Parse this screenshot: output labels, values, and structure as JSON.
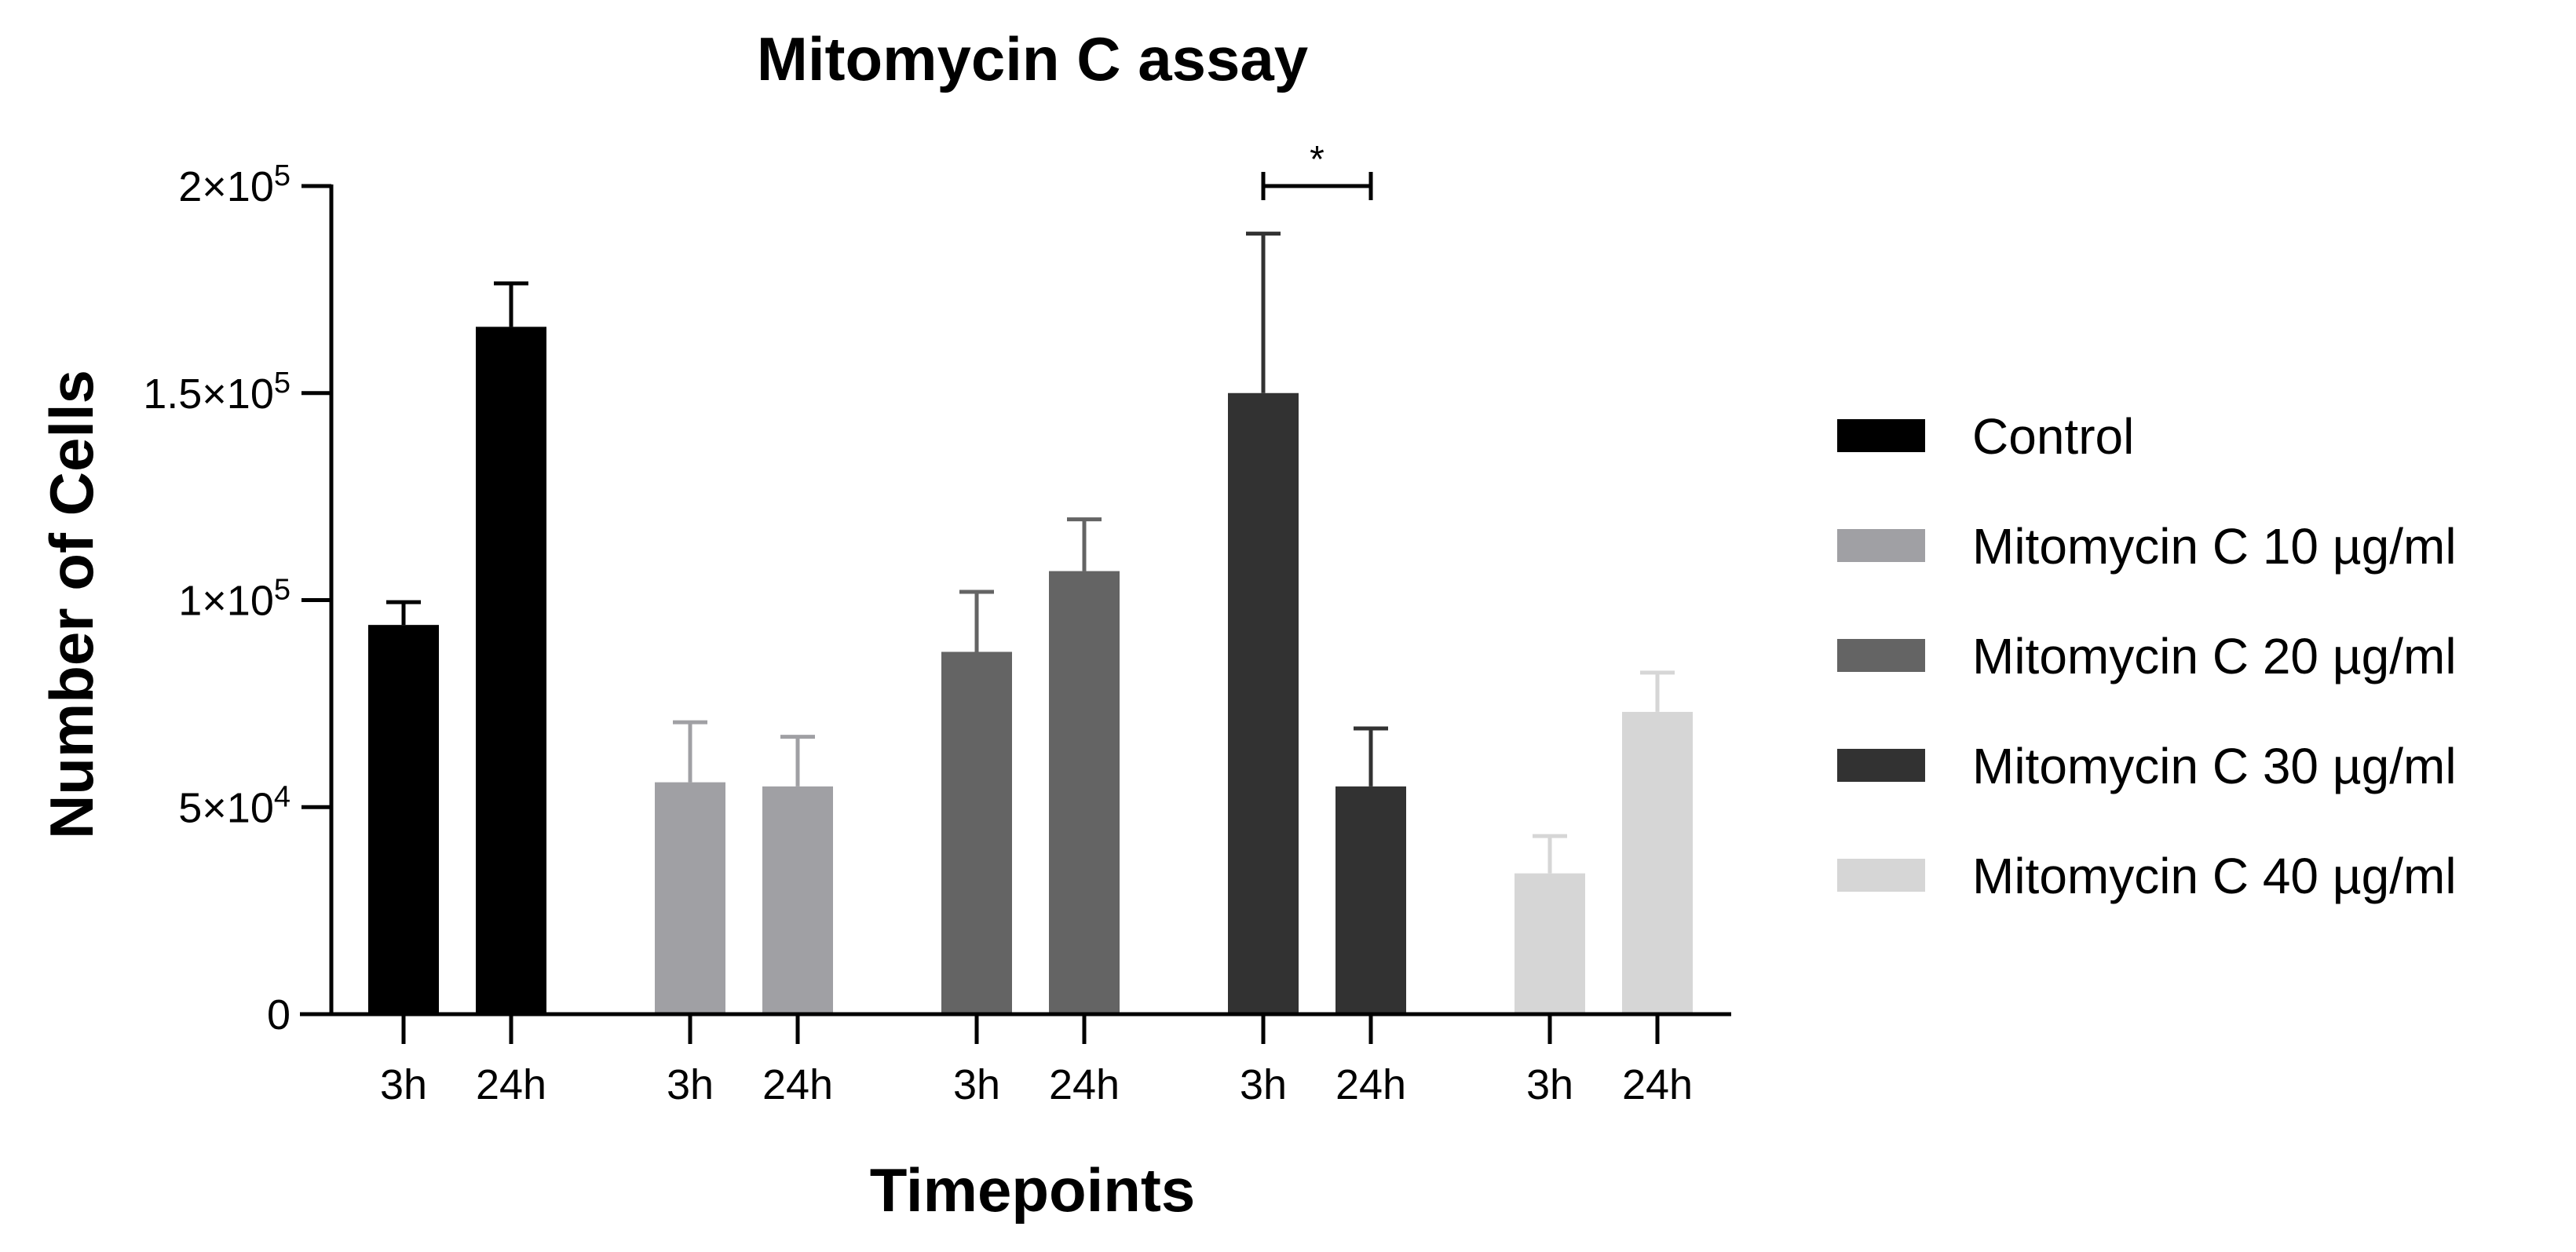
{
  "chart_data": {
    "type": "bar",
    "title": "Mitomycin C assay",
    "xlabel": "Timepoints",
    "ylabel": "Number of Cells",
    "ylim": [
      0,
      200000
    ],
    "yticks": [
      {
        "value": 0,
        "label": "0"
      },
      {
        "value": 50000,
        "label": "5×10",
        "exp": "4"
      },
      {
        "value": 100000,
        "label": "1×10",
        "exp": "5"
      },
      {
        "value": 150000,
        "label": "1.5×10",
        "exp": "5"
      },
      {
        "value": 200000,
        "label": "2×10",
        "exp": "5"
      }
    ],
    "categories": [
      "3h",
      "24h"
    ],
    "grid": false,
    "legend_position": "right",
    "series": [
      {
        "name": "Control",
        "color": "#000000",
        "values": [
          94000,
          166000
        ],
        "errors": [
          5500,
          10500
        ]
      },
      {
        "name": "Mitomycin C 10 µg/ml",
        "color": "#a0a0a4",
        "values": [
          56000,
          55000
        ],
        "errors": [
          14500,
          12000
        ]
      },
      {
        "name": "Mitomycin C 20 µg/ml",
        "color": "#646464",
        "values": [
          87500,
          107000
        ],
        "errors": [
          14500,
          12500
        ]
      },
      {
        "name": "Mitomycin C 30 µg/ml",
        "color": "#323232",
        "values": [
          150000,
          55000
        ],
        "errors": [
          38500,
          14000
        ]
      },
      {
        "name": "Mitomycin C 40 µg/ml",
        "color": "#d6d6d6",
        "values": [
          34000,
          73000
        ],
        "errors": [
          9000,
          9500
        ]
      }
    ],
    "annotations": [
      {
        "type": "significance",
        "series": "Mitomycin C 30 µg/ml",
        "between": [
          "3h",
          "24h"
        ],
        "label": "*"
      }
    ]
  }
}
